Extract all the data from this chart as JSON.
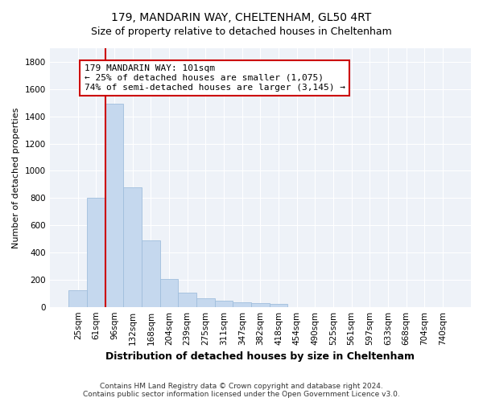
{
  "title1": "179, MANDARIN WAY, CHELTENHAM, GL50 4RT",
  "title2": "Size of property relative to detached houses in Cheltenham",
  "xlabel": "Distribution of detached houses by size in Cheltenham",
  "ylabel": "Number of detached properties",
  "categories": [
    "25sqm",
    "61sqm",
    "96sqm",
    "132sqm",
    "168sqm",
    "204sqm",
    "239sqm",
    "275sqm",
    "311sqm",
    "347sqm",
    "382sqm",
    "418sqm",
    "454sqm",
    "490sqm",
    "525sqm",
    "561sqm",
    "597sqm",
    "633sqm",
    "668sqm",
    "704sqm",
    "740sqm"
  ],
  "values": [
    125,
    800,
    1490,
    880,
    490,
    205,
    105,
    65,
    45,
    35,
    25,
    20,
    0,
    0,
    0,
    0,
    0,
    0,
    0,
    0,
    0
  ],
  "bar_color": "#c5d8ee",
  "bar_edgecolor": "#a0bedd",
  "annotation_text": "179 MANDARIN WAY: 101sqm\n← 25% of detached houses are smaller (1,075)\n74% of semi-detached houses are larger (3,145) →",
  "vline_color": "#cc0000",
  "box_color": "#cc0000",
  "ylim": [
    0,
    1900
  ],
  "yticks": [
    0,
    200,
    400,
    600,
    800,
    1000,
    1200,
    1400,
    1600,
    1800
  ],
  "footer": "Contains HM Land Registry data © Crown copyright and database right 2024.\nContains public sector information licensed under the Open Government Licence v3.0.",
  "bg_color": "#eef2f8",
  "grid_color": "#ffffff",
  "title1_fontsize": 10,
  "title2_fontsize": 9,
  "xlabel_fontsize": 9,
  "ylabel_fontsize": 8,
  "annotation_fontsize": 8,
  "footer_fontsize": 6.5,
  "tick_fontsize": 7.5
}
